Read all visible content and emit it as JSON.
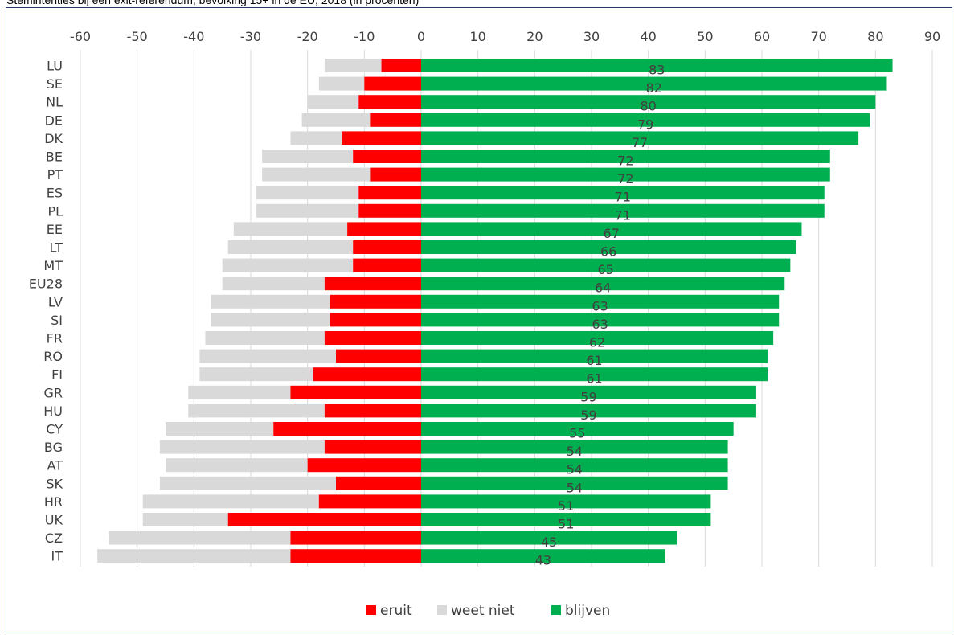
{
  "chart_data": {
    "type": "bar",
    "orientation": "horizontal",
    "stacked": true,
    "title": "Stemintenties bij een exit-referendum, bevolking 15+ in de EU, 2018 (in procenten)",
    "xlim": [
      -60,
      90
    ],
    "xticks": [
      -60,
      -50,
      -40,
      -30,
      -20,
      -10,
      0,
      10,
      20,
      30,
      40,
      50,
      60,
      70,
      80,
      90
    ],
    "xaxis_position": "top",
    "grid": true,
    "legend_position": "bottom",
    "categories": [
      "LU",
      "SE",
      "NL",
      "DE",
      "DK",
      "BE",
      "PT",
      "ES",
      "PL",
      "EE",
      "LT",
      "MT",
      "EU28",
      "LV",
      "SI",
      "FR",
      "RO",
      "FI",
      "GR",
      "HU",
      "CY",
      "BG",
      "AT",
      "SK",
      "HR",
      "UK",
      "CZ",
      "IT"
    ],
    "series": [
      {
        "name": "eruit",
        "color": "#ff0000",
        "values": [
          -7,
          -10,
          -11,
          -9,
          -14,
          -12,
          -9,
          -11,
          -11,
          -13,
          -12,
          -12,
          -17,
          -16,
          -16,
          -17,
          -15,
          -19,
          -23,
          -17,
          -26,
          -17,
          -20,
          -15,
          -18,
          -34,
          -23,
          -23
        ]
      },
      {
        "name": "weet niet",
        "color": "#d9d9d9",
        "values": [
          -10,
          -8,
          -9,
          -12,
          -9,
          -16,
          -19,
          -18,
          -18,
          -20,
          -22,
          -23,
          -18,
          -21,
          -21,
          -21,
          -24,
          -20,
          -18,
          -24,
          -19,
          -29,
          -25,
          -31,
          -31,
          -15,
          -32,
          -34
        ]
      },
      {
        "name": "blijven",
        "color": "#00b050",
        "values": [
          83,
          82,
          80,
          79,
          77,
          72,
          72,
          71,
          71,
          67,
          66,
          65,
          64,
          63,
          63,
          62,
          61,
          61,
          59,
          59,
          55,
          54,
          54,
          54,
          51,
          51,
          45,
          43
        ]
      }
    ],
    "data_labels": [
      "83",
      "82",
      "80",
      "79",
      "77",
      "72",
      "72",
      "71",
      "71",
      "67",
      "66",
      "65",
      "64",
      "63",
      "63",
      "62",
      "61",
      "61",
      "59",
      "59",
      "55",
      "54",
      "54",
      "54",
      "51",
      "51",
      "45",
      "43"
    ]
  }
}
